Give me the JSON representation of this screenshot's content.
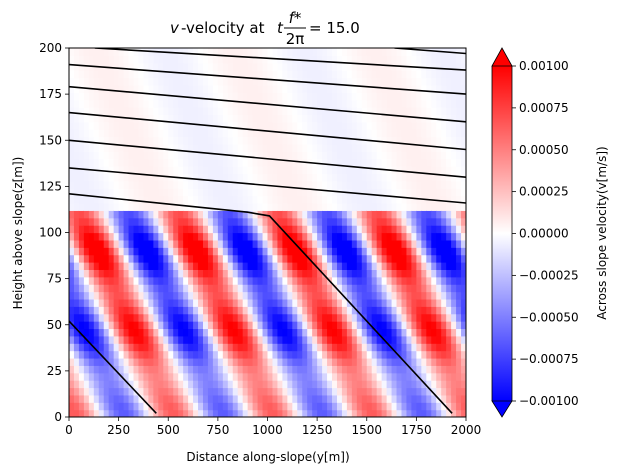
{
  "chart_data": {
    "type": "heatmap",
    "title_prefix": "v",
    "title_middle": "-velocity at ",
    "title_t": "t",
    "title_frac_num": "f*",
    "title_frac_den": "2π",
    "title_value": "= 15.0",
    "xlabel": "Distance along-slope(y[m])",
    "ylabel": "Height above slope(z[m])",
    "colorbar_label": "Across slope velocity(v[m/s])",
    "xlim": [
      0,
      2000
    ],
    "ylim": [
      0,
      200
    ],
    "clim": [
      -0.001,
      0.001
    ],
    "colormap": "bwr",
    "colors": {
      "low": "#0000ff",
      "mid": "#ffffff",
      "high": "#ff0000"
    },
    "x_ticks": [
      0,
      250,
      500,
      750,
      1000,
      1250,
      1500,
      1750,
      2000
    ],
    "x_tick_labels": [
      "0",
      "250",
      "500",
      "750",
      "1000",
      "1250",
      "1500",
      "1750",
      "2000"
    ],
    "y_ticks": [
      0,
      25,
      50,
      75,
      100,
      125,
      150,
      175,
      200
    ],
    "y_tick_labels": [
      "0",
      "25",
      "50",
      "75",
      "100",
      "125",
      "150",
      "175",
      "200"
    ],
    "colorbar_ticks": [
      -0.001,
      -0.00075,
      -0.0005,
      -0.00025,
      0,
      0.00025,
      0.0005,
      0.00075,
      0.001
    ],
    "colorbar_tick_labels": [
      "−0.00100",
      "−0.00075",
      "−0.00050",
      "−0.00025",
      "0.00000",
      "0.00025",
      "0.00050",
      "0.00075",
      "0.00100"
    ],
    "wave_field": {
      "boundary_layer_top": 112,
      "band_period": 500,
      "band_slope": -4.35,
      "red_band_y_at_z100": [
        100,
        600,
        1100,
        1600
      ]
    },
    "contour_lines": [
      {
        "points": [
          [
            0,
            52
          ],
          [
            440,
            2
          ]
        ]
      },
      {
        "points": [
          [
            0,
            121
          ],
          [
            900,
            111
          ],
          [
            1010,
            109
          ],
          [
            1930,
            2
          ]
        ]
      },
      {
        "points": [
          [
            0,
            135
          ],
          [
            2000,
            116
          ]
        ]
      },
      {
        "points": [
          [
            0,
            150
          ],
          [
            2000,
            130
          ]
        ]
      },
      {
        "points": [
          [
            0,
            165
          ],
          [
            2000,
            145
          ]
        ]
      },
      {
        "points": [
          [
            0,
            179
          ],
          [
            2000,
            160
          ]
        ]
      },
      {
        "points": [
          [
            0,
            191
          ],
          [
            2000,
            175
          ]
        ]
      },
      {
        "points": [
          [
            130,
            200
          ],
          [
            2000,
            188
          ]
        ]
      },
      {
        "points": [
          [
            1640,
            200
          ],
          [
            2000,
            197
          ]
        ]
      }
    ]
  }
}
